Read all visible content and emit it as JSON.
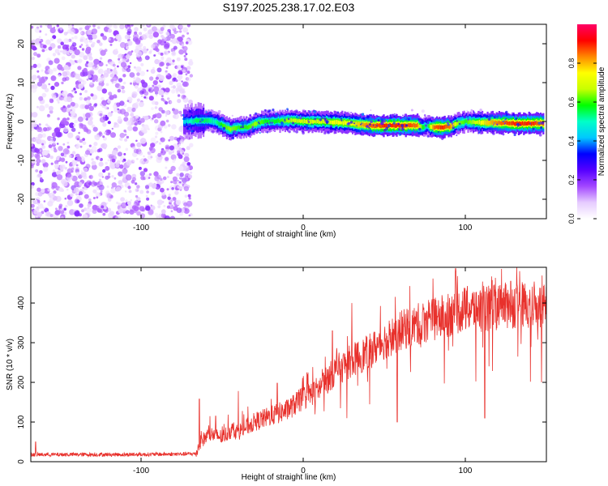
{
  "title": "S197.2025.238.17.02.E03",
  "colors": {
    "signal": "#e8312c",
    "speckle": "#8a2be2",
    "axis": "#000000",
    "background": "#ffffff"
  },
  "chart_data": [
    {
      "type": "heatmap",
      "name": "spectrogram",
      "xlabel": "Height of straight line (km)",
      "ylabel": "Frequency (Hz)",
      "xlim": [
        -168,
        150
      ],
      "ylim": [
        -25,
        25
      ],
      "xticks": [
        -100,
        0,
        100
      ],
      "yticks": [
        -20,
        -10,
        0,
        10,
        20
      ],
      "noise_region_x": [
        -168,
        -72
      ],
      "ridge": {
        "description": "narrow high-amplitude ridge near 0 Hz",
        "x": [
          -74,
          -70,
          -66,
          -60,
          -55,
          -50,
          -45,
          -40,
          -35,
          -30,
          -25,
          -20,
          -10,
          0,
          10,
          20,
          30,
          40,
          50,
          60,
          70,
          73,
          76,
          80,
          85,
          90,
          95,
          100,
          110,
          120,
          130,
          140,
          148
        ],
        "freq_hz": [
          0.0,
          0.0,
          0.2,
          0.3,
          0.0,
          -1.0,
          -2.0,
          -1.5,
          -1.5,
          -0.6,
          0.0,
          0.0,
          0.3,
          0.0,
          0.0,
          -0.2,
          -0.5,
          -1.0,
          -1.0,
          -1.0,
          -1.0,
          -1.5,
          -1.0,
          -1.5,
          -1.5,
          -1.3,
          -0.5,
          0.0,
          -0.3,
          -0.3,
          -0.5,
          -0.5,
          -0.5
        ],
        "amplitude": [
          0.45,
          0.5,
          0.55,
          0.55,
          0.5,
          0.6,
          0.65,
          0.6,
          0.6,
          0.65,
          0.6,
          0.55,
          0.65,
          0.7,
          0.7,
          0.75,
          0.75,
          0.85,
          0.9,
          0.9,
          0.85,
          0.6,
          0.5,
          0.85,
          0.9,
          0.85,
          0.65,
          0.6,
          0.75,
          0.85,
          0.9,
          0.9,
          0.85
        ]
      },
      "colorbar": {
        "label": "Normalized spectral amplitude",
        "range": [
          0,
          1
        ],
        "ticks": [
          "0.0",
          "0.2",
          "0.4",
          "0.6",
          "0.8"
        ],
        "tick_values": [
          0.0,
          0.2,
          0.4,
          0.6,
          0.8
        ],
        "stops": [
          "#ffffff",
          "#e6ccff",
          "#a347ff",
          "#5500ff",
          "#0000ff",
          "#00c8ff",
          "#00ffc8",
          "#00ff00",
          "#c8ff00",
          "#ffff00",
          "#ff8800",
          "#ff0000",
          "#ff0066"
        ]
      }
    },
    {
      "type": "line",
      "name": "snr",
      "xlabel": "Height of straight line (km)",
      "ylabel": "SNR (10 * v/v)",
      "xlim": [
        -168,
        150
      ],
      "ylim": [
        0,
        490
      ],
      "xticks": [
        -100,
        0,
        100
      ],
      "yticks": [
        0,
        100,
        200,
        300,
        400
      ],
      "series": [
        {
          "name": "SNR",
          "x": [
            -168,
            -140,
            -110,
            -80,
            -66,
            -64,
            -62,
            -58,
            -50,
            -44,
            -40,
            -30,
            -20,
            -10,
            0,
            10,
            20,
            30,
            40,
            50,
            60,
            70,
            80,
            90,
            100,
            110,
            120,
            130,
            140,
            150
          ],
          "baseline": [
            18,
            18,
            18,
            19,
            20,
            45,
            55,
            70,
            62,
            80,
            75,
            100,
            115,
            130,
            160,
            185,
            230,
            255,
            275,
            305,
            330,
            345,
            360,
            370,
            385,
            385,
            390,
            395,
            395,
            400
          ],
          "peaks": [
            {
              "x": -165,
              "y": 50
            },
            {
              "x": -64,
              "y": 158
            },
            {
              "x": -54,
              "y": 115
            },
            {
              "x": -40,
              "y": 178
            },
            {
              "x": -16,
              "y": 198
            },
            {
              "x": 18,
              "y": 330
            },
            {
              "x": 30,
              "y": 400
            },
            {
              "x": 94,
              "y": 487
            },
            {
              "x": 128,
              "y": 455
            },
            {
              "x": 150,
              "y": 440
            }
          ],
          "dips": [
            {
              "x": 58,
              "y": 100
            },
            {
              "x": 112,
              "y": 110
            },
            {
              "x": 147,
              "y": 200
            }
          ]
        }
      ]
    }
  ]
}
